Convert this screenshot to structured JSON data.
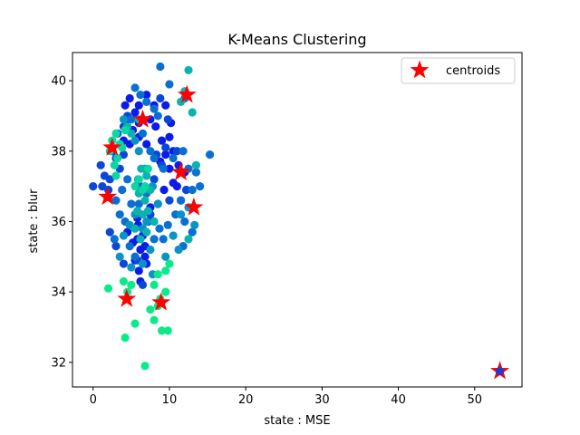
{
  "chart_data": {
    "type": "scatter",
    "title": "K-Means Clustering",
    "xlabel": "state : MSE",
    "ylabel": "state : blur",
    "xlim": [
      -2.7,
      56.2
    ],
    "ylim": [
      31.3,
      40.8
    ],
    "xticks": [
      0,
      10,
      20,
      30,
      40,
      50
    ],
    "yticks": [
      32,
      34,
      36,
      38,
      40
    ],
    "grid": false,
    "legend": {
      "location": "top-right",
      "entries": [
        "centroids"
      ]
    },
    "colors": {
      "cluster_palette": [
        "#0a1ce6",
        "#0a46d8",
        "#0a6fd0",
        "#0a94c4",
        "#0ab3b0",
        "#0ad8a0",
        "#0aea8a"
      ],
      "centroid": "#ff0000",
      "outlier_point": "#1f3ad0"
    },
    "clusters": [
      {
        "color": "#0a1ce6",
        "points": [
          [
            4.2,
            39.3
          ],
          [
            4.8,
            39.5
          ],
          [
            5.5,
            39.1
          ],
          [
            6.0,
            39.3
          ],
          [
            7.0,
            39.6
          ],
          [
            8.0,
            39.3
          ],
          [
            9.5,
            39.3
          ],
          [
            4.5,
            38.9
          ],
          [
            5.2,
            38.6
          ],
          [
            6.0,
            38.8
          ],
          [
            7.5,
            38.9
          ],
          [
            8.2,
            38.7
          ],
          [
            4.0,
            38.3
          ],
          [
            4.8,
            38.2
          ],
          [
            6.0,
            38.4
          ],
          [
            7.0,
            38.2
          ],
          [
            9.0,
            38.3
          ],
          [
            10.0,
            38.4
          ],
          [
            10.5,
            38.0
          ],
          [
            9.5,
            37.9
          ],
          [
            8.8,
            37.7
          ],
          [
            10.0,
            37.5
          ],
          [
            11.2,
            37.6
          ],
          [
            12.0,
            37.4
          ],
          [
            10.5,
            37.1
          ],
          [
            9.3,
            36.9
          ],
          [
            11.0,
            37.0
          ],
          [
            10.2,
            38.8
          ],
          [
            7.5,
            36.4
          ],
          [
            8.5,
            36.5
          ],
          [
            6.5,
            35.8
          ],
          [
            5.8,
            35.5
          ],
          [
            6.2,
            35.2
          ],
          [
            6.8,
            35.0
          ],
          [
            5.5,
            34.9
          ],
          [
            6.0,
            34.6
          ],
          [
            7.0,
            34.8
          ],
          [
            6.5,
            35.6
          ],
          [
            5.2,
            35.4
          ],
          [
            6.8,
            35.3
          ],
          [
            7.2,
            36.0
          ],
          [
            5.8,
            36.1
          ],
          [
            4.5,
            35.7
          ],
          [
            6.2,
            34.3
          ],
          [
            5.9,
            35.9
          ]
        ]
      },
      {
        "color": "#0a46d8",
        "points": [
          [
            0.0,
            37.0
          ],
          [
            1.0,
            37.6
          ],
          [
            1.5,
            37.3
          ],
          [
            2.0,
            36.9
          ],
          [
            2.2,
            37.2
          ],
          [
            1.2,
            37.0
          ],
          [
            3.0,
            37.8
          ],
          [
            3.5,
            37.5
          ],
          [
            2.5,
            38.0
          ],
          [
            4.0,
            37.9
          ],
          [
            3.2,
            38.5
          ],
          [
            4.0,
            38.7
          ],
          [
            4.5,
            39.0
          ],
          [
            6.2,
            37.0
          ],
          [
            8.0,
            37.2
          ],
          [
            9.0,
            37.6
          ],
          [
            10.0,
            36.6
          ],
          [
            11.5,
            36.6
          ],
          [
            12.2,
            36.9
          ],
          [
            2.2,
            35.7
          ],
          [
            3.0,
            35.3
          ],
          [
            4.0,
            34.8
          ],
          [
            5.8,
            34.9
          ],
          [
            6.5,
            34.2
          ],
          [
            7.5,
            36.2
          ],
          [
            8.3,
            37.9
          ],
          [
            9.5,
            38.1
          ],
          [
            11.0,
            38.0
          ],
          [
            8.8,
            39.5
          ],
          [
            9.8,
            38.9
          ],
          [
            2.0,
            36.7
          ]
        ]
      },
      {
        "color": "#0a6fd0",
        "points": [
          [
            8.8,
            40.4
          ],
          [
            5.5,
            39.8
          ],
          [
            6.2,
            39.6
          ],
          [
            7.0,
            39.4
          ],
          [
            8.0,
            39.2
          ],
          [
            8.5,
            39.0
          ],
          [
            5.0,
            38.9
          ],
          [
            6.5,
            38.5
          ],
          [
            7.5,
            38.0
          ],
          [
            8.0,
            37.8
          ],
          [
            9.2,
            37.5
          ],
          [
            10.5,
            37.8
          ],
          [
            11.8,
            38.0
          ],
          [
            12.5,
            37.5
          ],
          [
            13.5,
            37.4
          ],
          [
            11.5,
            36.6
          ],
          [
            13.0,
            36.9
          ],
          [
            10.8,
            36.2
          ],
          [
            12.0,
            36.0
          ],
          [
            13.0,
            35.7
          ],
          [
            11.8,
            35.3
          ],
          [
            9.2,
            35.5
          ],
          [
            8.7,
            35.8
          ],
          [
            8.0,
            35.5
          ],
          [
            6.0,
            36.5
          ],
          [
            7.0,
            36.8
          ],
          [
            5.0,
            36.5
          ],
          [
            4.5,
            37.2
          ],
          [
            3.8,
            36.9
          ],
          [
            3.5,
            36.2
          ],
          [
            4.2,
            36.0
          ],
          [
            3.0,
            36.6
          ],
          [
            2.8,
            35.5
          ],
          [
            4.8,
            35.3
          ],
          [
            5.5,
            35.0
          ],
          [
            9.8,
            35.9
          ],
          [
            15.3,
            37.9
          ],
          [
            14.0,
            37.0
          ],
          [
            12.0,
            39.5
          ],
          [
            10.0,
            39.9
          ]
        ]
      },
      {
        "color": "#0a94c4",
        "points": [
          [
            4.0,
            38.9
          ],
          [
            5.5,
            38.3
          ],
          [
            6.0,
            38.0
          ],
          [
            6.8,
            37.5
          ],
          [
            7.8,
            37.0
          ],
          [
            8.5,
            36.5
          ],
          [
            7.0,
            36.0
          ],
          [
            6.5,
            35.8
          ],
          [
            5.5,
            36.2
          ],
          [
            4.8,
            35.9
          ],
          [
            4.0,
            35.6
          ],
          [
            3.5,
            35.0
          ],
          [
            5.0,
            34.7
          ],
          [
            7.5,
            35.2
          ],
          [
            9.5,
            35.0
          ],
          [
            10.5,
            35.6
          ],
          [
            11.5,
            36.2
          ],
          [
            12.5,
            36.4
          ],
          [
            13.3,
            35.9
          ],
          [
            11.2,
            35.2
          ],
          [
            6.5,
            34.8
          ],
          [
            7.8,
            34.5
          ],
          [
            5.9,
            37.2
          ]
        ]
      },
      {
        "color": "#0ab3b0",
        "points": [
          [
            12.5,
            40.3
          ],
          [
            13.0,
            39.1
          ],
          [
            12.0,
            39.7
          ],
          [
            11.5,
            39.4
          ],
          [
            13.5,
            37.6
          ],
          [
            13.0,
            36.4
          ],
          [
            12.5,
            35.5
          ],
          [
            4.5,
            38.7
          ],
          [
            5.0,
            38.5
          ],
          [
            6.0,
            38.9
          ],
          [
            6.3,
            37.5
          ],
          [
            7.0,
            37.3
          ],
          [
            7.5,
            36.9
          ],
          [
            6.8,
            36.6
          ],
          [
            6.0,
            36.8
          ],
          [
            5.8,
            36.3
          ],
          [
            6.5,
            36.2
          ],
          [
            7.2,
            36.3
          ],
          [
            8.0,
            36.0
          ],
          [
            7.0,
            35.7
          ],
          [
            5.5,
            35.8
          ],
          [
            6.2,
            35.5
          ]
        ]
      },
      {
        "color": "#0ad8a0",
        "points": [
          [
            3.0,
            38.5
          ],
          [
            3.5,
            38.2
          ],
          [
            2.5,
            38.3
          ],
          [
            2.2,
            38.0
          ],
          [
            3.8,
            38.1
          ],
          [
            3.2,
            37.8
          ],
          [
            2.8,
            37.6
          ],
          [
            3.0,
            37.3
          ],
          [
            4.2,
            38.6
          ],
          [
            5.5,
            37.0
          ],
          [
            6.0,
            37.2
          ],
          [
            6.8,
            37.0
          ],
          [
            7.2,
            37.5
          ],
          [
            6.5,
            36.9
          ]
        ]
      },
      {
        "color": "#0aea8a",
        "points": [
          [
            8.5,
            34.5
          ],
          [
            9.5,
            34.6
          ],
          [
            10.0,
            34.8
          ],
          [
            8.0,
            34.2
          ],
          [
            9.5,
            34.0
          ],
          [
            4.5,
            34.0
          ],
          [
            5.0,
            34.2
          ],
          [
            2.0,
            34.1
          ],
          [
            4.0,
            34.3
          ],
          [
            8.8,
            33.8
          ],
          [
            8.5,
            33.6
          ],
          [
            7.5,
            33.5
          ],
          [
            8.0,
            33.2
          ],
          [
            5.5,
            33.1
          ],
          [
            4.2,
            32.7
          ],
          [
            9.0,
            32.9
          ],
          [
            9.8,
            32.9
          ],
          [
            6.8,
            31.9
          ]
        ]
      },
      {
        "color": "#1f3ad0",
        "points": [
          [
            53.3,
            31.75
          ]
        ]
      }
    ],
    "centroids": [
      [
        12.3,
        39.6
      ],
      [
        6.5,
        38.9
      ],
      [
        2.5,
        38.1
      ],
      [
        11.5,
        37.4
      ],
      [
        1.9,
        36.7
      ],
      [
        13.2,
        36.4
      ],
      [
        4.4,
        33.8
      ],
      [
        8.9,
        33.7
      ],
      [
        53.3,
        31.75
      ]
    ]
  }
}
